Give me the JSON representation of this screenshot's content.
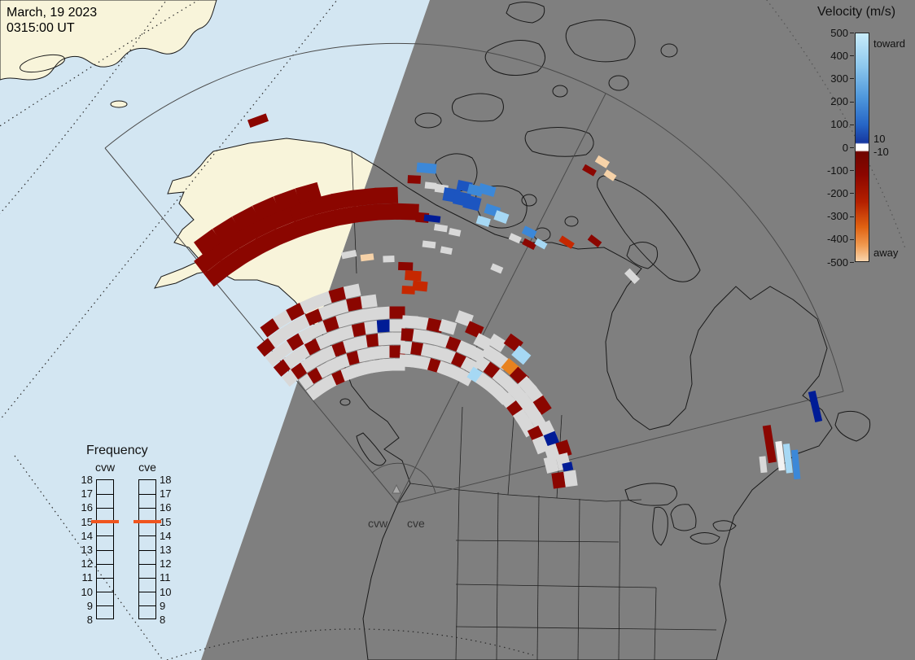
{
  "header": {
    "date_line1": "March, 19 2023",
    "date_line2": "0315:00 UT"
  },
  "velocity_legend": {
    "title": "Velocity (m/s)",
    "ticks": [
      "500",
      "400",
      "300",
      "200",
      "100",
      "0",
      "-100",
      "-200",
      "-300",
      "-400",
      "-500"
    ],
    "toward_label": "toward",
    "away_label": "away",
    "upper_band_label": "10",
    "lower_band_label": "-10",
    "gradient": [
      [
        0,
        "#c9ecfa"
      ],
      [
        14,
        "#8fc9ee"
      ],
      [
        28,
        "#4f98dc"
      ],
      [
        40,
        "#2766c6"
      ],
      [
        48,
        "#16379f"
      ],
      [
        48.6,
        "#ffffff"
      ],
      [
        51.4,
        "#ffffff"
      ],
      [
        52,
        "#6f0500"
      ],
      [
        62,
        "#8b0600"
      ],
      [
        74,
        "#b42000"
      ],
      [
        85,
        "#e06212"
      ],
      [
        93,
        "#f09a50"
      ],
      [
        100,
        "#f8d4ac"
      ]
    ]
  },
  "frequency_legend": {
    "title": "Frequency",
    "columns": [
      {
        "label": "cvw"
      },
      {
        "label": "cve"
      }
    ],
    "ticks": [
      "18",
      "17",
      "16",
      "15",
      "14",
      "13",
      "12",
      "11",
      "10",
      "9",
      "8"
    ],
    "highlight_value": "15",
    "highlight_color": "#f0551e"
  },
  "map": {
    "radar_label_west": "cvw",
    "radar_label_east": "cve",
    "colors": {
      "day_ocean": "#d3e6f2",
      "day_land": "#f8f4da",
      "night": "#7f7f7f",
      "outline": "#1a1a1a"
    },
    "palette": {
      "dr": "#8b0600",
      "rd": "#c62800",
      "or": "#e8821e",
      "pe": "#f6d2a8",
      "lb": "#a6d8f4",
      "mb": "#3c88d8",
      "db": "#1c55c0",
      "nb": "#001c96",
      "gy": "#d8d8d8",
      "wh": "#f2f2f2"
    },
    "cells": [
      [
        -128,
        358,
        "dr",
        28,
        20
      ],
      [
        -124,
        358,
        "dr",
        28,
        20
      ],
      [
        -120,
        358,
        "dr",
        28,
        20
      ],
      [
        -116,
        358,
        "dr",
        28,
        20
      ],
      [
        -112,
        358,
        "dr",
        28,
        20
      ],
      [
        -108,
        358,
        "dr",
        28,
        20
      ],
      [
        -104,
        358,
        "dr",
        28,
        20
      ],
      [
        -100,
        358,
        "dr",
        28,
        20
      ],
      [
        -96,
        358,
        "dr",
        28,
        20
      ],
      [
        -92,
        358,
        "dr",
        28,
        20
      ],
      [
        -88,
        358,
        "dr",
        28,
        20
      ],
      [
        -128,
        378,
        "dr",
        28,
        20
      ],
      [
        -124,
        378,
        "dr",
        28,
        20
      ],
      [
        -120,
        378,
        "dr",
        28,
        20
      ],
      [
        -116,
        378,
        "dr",
        28,
        20
      ],
      [
        -112,
        378,
        "dr",
        28,
        20
      ],
      [
        -108,
        378,
        "dr",
        28,
        20
      ],
      [
        -104,
        378,
        "dr",
        28,
        20
      ],
      [
        -100,
        378,
        "dr",
        28,
        20
      ],
      [
        -96,
        378,
        "dr",
        28,
        20
      ],
      [
        -92,
        378,
        "dr",
        28,
        20
      ],
      [
        -126,
        396,
        "dr",
        28,
        20
      ],
      [
        -122,
        396,
        "dr",
        28,
        20
      ],
      [
        -118,
        396,
        "dr",
        28,
        20
      ],
      [
        -114,
        396,
        "dr",
        28,
        20
      ],
      [
        -110,
        396,
        "dr",
        28,
        20
      ],
      [
        -106,
        396,
        "dr",
        28,
        20
      ],
      [
        -85,
        352,
        "dr",
        16,
        12
      ],
      [
        -110,
        500,
        "dr",
        24,
        10
      ],
      [
        -87,
        398,
        "dr",
        16,
        10
      ],
      [
        -84,
        392,
        "gy",
        14,
        8
      ],
      [
        -85,
        413,
        "mb",
        24,
        12
      ],
      [
        -82,
        390,
        "gy",
        16,
        10
      ],
      [
        -80,
        384,
        "db",
        20,
        16
      ],
      [
        -78,
        382,
        "db",
        20,
        16
      ],
      [
        -76,
        380,
        "db",
        20,
        16
      ],
      [
        -78,
        398,
        "db",
        18,
        12
      ],
      [
        -76,
        396,
        "mb",
        18,
        12
      ],
      [
        -74,
        400,
        "mb",
        20,
        12
      ],
      [
        -72,
        378,
        "mb",
        18,
        12
      ],
      [
        -70,
        374,
        "lb",
        16,
        12
      ],
      [
        -73,
        362,
        "lb",
        16,
        10
      ],
      [
        -83,
        352,
        "nb",
        20,
        8
      ],
      [
        -81,
        342,
        "gy",
        16,
        8
      ],
      [
        -78,
        340,
        "gy",
        14,
        8
      ],
      [
        -64,
        370,
        "mb",
        16,
        10
      ],
      [
        -66,
        356,
        "gy",
        14,
        8
      ],
      [
        -63,
        357,
        "dr",
        16,
        8
      ],
      [
        -61,
        364,
        "lb",
        14,
        8
      ],
      [
        -59,
        489,
        "pe",
        16,
        9
      ],
      [
        -57,
        480,
        "pe",
        14,
        8
      ],
      [
        -60,
        472,
        "dr",
        16,
        8
      ],
      [
        -57,
        382,
        "rd",
        18,
        8
      ],
      [
        -53,
        403,
        "dr",
        16,
        8
      ],
      [
        -101,
        311,
        "gy",
        18,
        8
      ],
      [
        -97,
        304,
        "pe",
        16,
        8
      ],
      [
        -92,
        300,
        "gy",
        14,
        8
      ],
      [
        -88,
        291,
        "dr",
        18,
        10
      ],
      [
        -86,
        280,
        "rd",
        20,
        12
      ],
      [
        -84,
        268,
        "rd",
        18,
        12
      ],
      [
        -87,
        262,
        "rd",
        16,
        10
      ],
      [
        -44,
        401,
        "gy",
        18,
        9
      ],
      [
        -83,
        320,
        "gy",
        16,
        8
      ],
      [
        -79,
        316,
        "gy",
        14,
        8
      ],
      [
        -67,
        313,
        "gy",
        14,
        8
      ],
      [
        -130,
        202,
        "gy"
      ],
      [
        -130,
        218,
        "dr"
      ],
      [
        -130,
        234,
        "gy"
      ],
      [
        -130,
        250,
        "dr"
      ],
      [
        -126,
        170,
        "gy"
      ],
      [
        -126,
        186,
        "gy"
      ],
      [
        -126,
        202,
        "dr"
      ],
      [
        -126,
        218,
        "gy"
      ],
      [
        -126,
        234,
        "gy"
      ],
      [
        -126,
        250,
        "gy"
      ],
      [
        -126,
        266,
        "dr"
      ],
      [
        -122,
        170,
        "gy"
      ],
      [
        -122,
        186,
        "dr"
      ],
      [
        -122,
        202,
        "gy"
      ],
      [
        -122,
        218,
        "gy"
      ],
      [
        -122,
        234,
        "dr"
      ],
      [
        -122,
        250,
        "gy"
      ],
      [
        -122,
        266,
        "gy"
      ],
      [
        -118,
        170,
        "gy"
      ],
      [
        -118,
        186,
        "gy"
      ],
      [
        -118,
        202,
        "gy"
      ],
      [
        -118,
        218,
        "dr"
      ],
      [
        -118,
        234,
        "gy"
      ],
      [
        -118,
        250,
        "gy"
      ],
      [
        -118,
        266,
        "dr"
      ],
      [
        -114,
        170,
        "dr"
      ],
      [
        -114,
        186,
        "gy"
      ],
      [
        -114,
        202,
        "gy"
      ],
      [
        -114,
        218,
        "gy"
      ],
      [
        -114,
        234,
        "gy"
      ],
      [
        -114,
        250,
        "dr"
      ],
      [
        -114,
        266,
        "gy"
      ],
      [
        -110,
        170,
        "gy"
      ],
      [
        -110,
        186,
        "gy"
      ],
      [
        -110,
        202,
        "dr"
      ],
      [
        -110,
        218,
        "gy"
      ],
      [
        -110,
        234,
        "dr"
      ],
      [
        -110,
        250,
        "gy"
      ],
      [
        -110,
        266,
        "gy"
      ],
      [
        -106,
        170,
        "gy"
      ],
      [
        -106,
        186,
        "dr"
      ],
      [
        -106,
        202,
        "gy"
      ],
      [
        -106,
        218,
        "gy"
      ],
      [
        -106,
        234,
        "gy"
      ],
      [
        -106,
        250,
        "gy"
      ],
      [
        -106,
        266,
        "dr"
      ],
      [
        -102,
        170,
        "gy"
      ],
      [
        -102,
        186,
        "gy"
      ],
      [
        -102,
        202,
        "gy"
      ],
      [
        -102,
        218,
        "dr"
      ],
      [
        -102,
        234,
        "gy"
      ],
      [
        -102,
        250,
        "dr"
      ],
      [
        -102,
        266,
        "gy"
      ],
      [
        -98,
        170,
        "gy"
      ],
      [
        -98,
        186,
        "gy"
      ],
      [
        -98,
        202,
        "dr"
      ],
      [
        -98,
        218,
        "gy"
      ],
      [
        -98,
        234,
        "gy"
      ],
      [
        -98,
        250,
        "gy"
      ],
      [
        -94,
        170,
        "gy"
      ],
      [
        -94,
        186,
        "gy"
      ],
      [
        -94,
        202,
        "gy"
      ],
      [
        -94,
        218,
        "nb"
      ],
      [
        -94,
        234,
        "gy"
      ],
      [
        -90,
        170,
        "gy"
      ],
      [
        -90,
        186,
        "dr"
      ],
      [
        -90,
        202,
        "gy"
      ],
      [
        -90,
        218,
        "gy"
      ],
      [
        -90,
        234,
        "dr"
      ],
      [
        -86,
        175,
        "gy"
      ],
      [
        -86,
        191,
        "gy"
      ],
      [
        -86,
        207,
        "dr"
      ],
      [
        -86,
        223,
        "gy"
      ],
      [
        -82,
        175,
        "gy"
      ],
      [
        -82,
        191,
        "dr"
      ],
      [
        -82,
        207,
        "gy"
      ],
      [
        -82,
        223,
        "gy"
      ],
      [
        -78,
        175,
        "gy"
      ],
      [
        -78,
        191,
        "gy"
      ],
      [
        -78,
        207,
        "gy"
      ],
      [
        -78,
        223,
        "dr"
      ],
      [
        -74,
        175,
        "dr"
      ],
      [
        -74,
        191,
        "gy"
      ],
      [
        -74,
        207,
        "gy"
      ],
      [
        -74,
        225,
        "gy"
      ],
      [
        -70,
        175,
        "gy"
      ],
      [
        -70,
        191,
        "gy"
      ],
      [
        -70,
        207,
        "dr"
      ],
      [
        -70,
        241,
        "gy"
      ],
      [
        -66,
        175,
        "gy"
      ],
      [
        -66,
        191,
        "dr"
      ],
      [
        -66,
        207,
        "gy"
      ],
      [
        -66,
        233,
        "dr"
      ],
      [
        -62,
        175,
        "gy"
      ],
      [
        -62,
        191,
        "gy"
      ],
      [
        -62,
        207,
        "gy"
      ],
      [
        -62,
        224,
        "gy"
      ],
      [
        -58,
        184,
        "lb"
      ],
      [
        -58,
        200,
        "gy"
      ],
      [
        -58,
        216,
        "gy"
      ],
      [
        -58,
        232,
        "gy"
      ],
      [
        -54,
        184,
        "gy"
      ],
      [
        -54,
        200,
        "dr"
      ],
      [
        -54,
        216,
        "gy"
      ],
      [
        -54,
        243,
        "dr"
      ],
      [
        -50,
        184,
        "gy"
      ],
      [
        -50,
        200,
        "gy"
      ],
      [
        -50,
        217,
        "or"
      ],
      [
        -50,
        237,
        "lb"
      ],
      [
        -46,
        184,
        "gy"
      ],
      [
        -46,
        200,
        "gy"
      ],
      [
        -46,
        216,
        "dr"
      ],
      [
        -42,
        185,
        "gy"
      ],
      [
        -42,
        200,
        "gy"
      ],
      [
        -42,
        215,
        "gy"
      ],
      [
        -38,
        185,
        "dr"
      ],
      [
        -38,
        200,
        "gy"
      ],
      [
        -38,
        215,
        "gy"
      ],
      [
        -34,
        185,
        "gy"
      ],
      [
        -34,
        200,
        "gy"
      ],
      [
        -34,
        215,
        "dr"
      ],
      [
        -30,
        185,
        "gy"
      ],
      [
        -30,
        200,
        "gy"
      ],
      [
        -26,
        190,
        "dr"
      ],
      [
        -26,
        205,
        "gy"
      ],
      [
        -22,
        190,
        "gy"
      ],
      [
        -22,
        205,
        "nb"
      ],
      [
        -18,
        200,
        "gy"
      ],
      [
        -18,
        215,
        "dr"
      ],
      [
        -14,
        195,
        "gy"
      ],
      [
        -14,
        210,
        "gy"
      ],
      [
        -12,
        214,
        "nb",
        10,
        12
      ],
      [
        -8,
        200,
        "dr"
      ],
      [
        -8,
        215,
        "gy"
      ],
      [
        -13,
        527,
        "nb",
        38,
        9
      ],
      [
        -9,
        463,
        "dr",
        46,
        10
      ],
      [
        -7,
        474,
        "wh",
        36,
        8
      ],
      [
        -6.5,
        483,
        "lb",
        36,
        8
      ],
      [
        -5.5,
        492,
        "mb",
        36,
        8
      ],
      [
        -6,
        452,
        "gy",
        20,
        8
      ]
    ]
  }
}
